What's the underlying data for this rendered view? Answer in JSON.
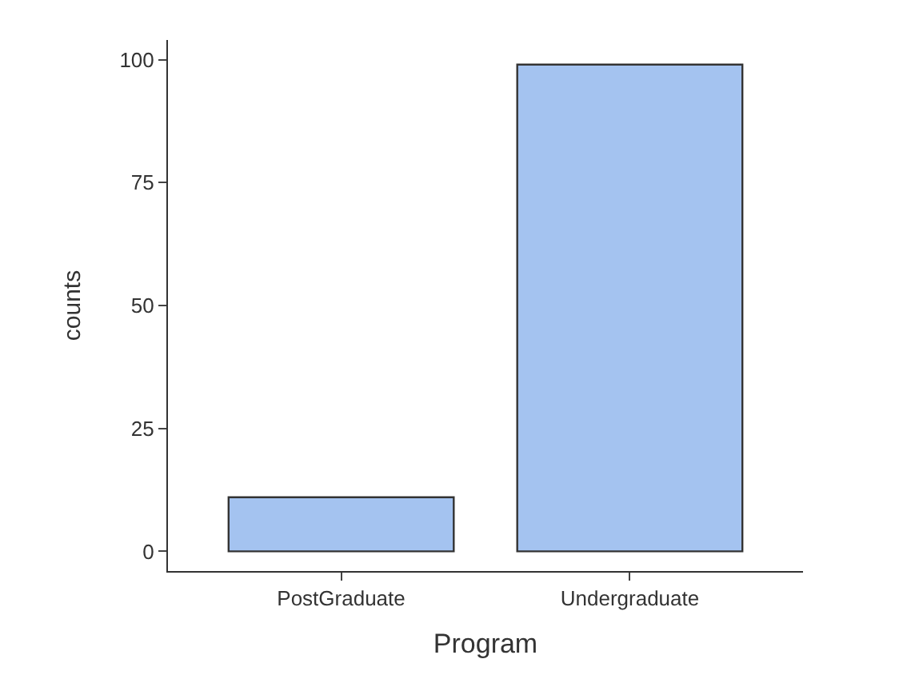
{
  "chart_data": {
    "type": "bar",
    "xlabel": "Program",
    "ylabel": "counts",
    "categories": [
      "PostGraduate",
      "Undergraduate"
    ],
    "values": [
      11,
      99
    ],
    "color": "#a4c3f0",
    "ylim": [
      -4,
      104
    ],
    "yticks": [
      0,
      25,
      50,
      75,
      100
    ],
    "legend": false
  }
}
